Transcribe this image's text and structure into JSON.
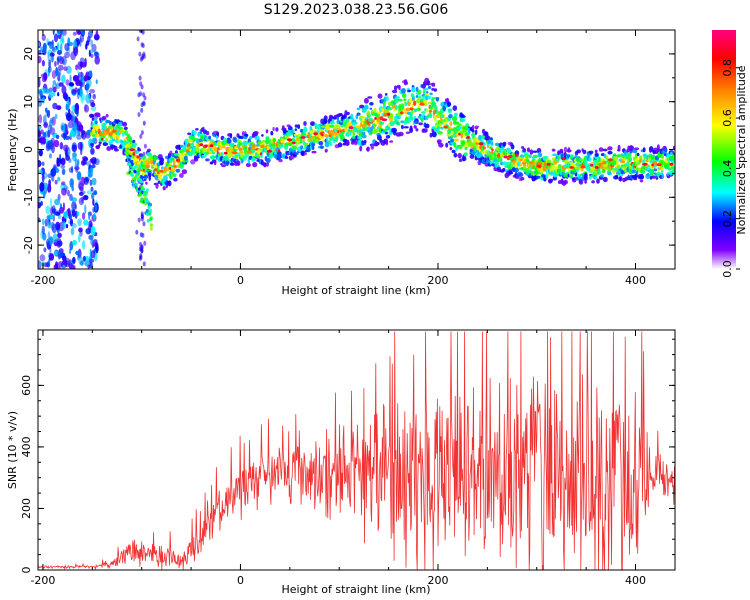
{
  "title": "S129.2023.038.23.56.G06",
  "chart_data": [
    {
      "type": "heatmap",
      "xlabel": "Height of straight line (km)",
      "ylabel": "Frequency (Hz)",
      "xlim": [
        -205,
        440
      ],
      "ylim": [
        -25,
        25
      ],
      "xticks": [
        -200,
        0,
        200,
        400
      ],
      "yticks": [
        -20,
        -10,
        0,
        10,
        20
      ],
      "colorbar": {
        "label": "Normalized spectral amplitude",
        "range": [
          0.0,
          0.95
        ],
        "ticks": [
          0.0,
          0.2,
          0.4,
          0.6,
          0.8
        ],
        "colors": [
          "#ffffff",
          "#8000ff",
          "#0000ff",
          "#00ffff",
          "#00ff00",
          "#ffff00",
          "#ff8000",
          "#ff0000",
          "#ff0080"
        ]
      },
      "ridge": {
        "x": [
          -150,
          -135,
          -120,
          -110,
          -100,
          -90,
          -80,
          -70,
          -60,
          -50,
          -40,
          -20,
          0,
          20,
          40,
          60,
          80,
          100,
          120,
          140,
          160,
          180,
          190,
          200,
          210,
          230,
          250,
          270,
          300,
          330,
          360,
          390,
          420,
          440
        ],
        "y": [
          4,
          3.5,
          3,
          0,
          -4,
          -3,
          -5,
          -4,
          -2,
          1,
          1,
          0,
          0,
          0,
          1,
          2,
          3,
          4,
          5,
          6,
          8,
          9.5,
          9,
          7,
          5,
          2,
          0,
          -2,
          -3.5,
          -3.5,
          -3.5,
          -3,
          -3,
          -3
        ]
      },
      "spur": {
        "x": [
          -115,
          -108,
          -100,
          -95,
          -90
        ],
        "y": [
          -2,
          -6,
          -9,
          -11,
          -14
        ]
      }
    },
    {
      "type": "line",
      "xlabel": "Height of straight line (km)",
      "ylabel": "SNR (10 * v/v)",
      "xlim": [
        -205,
        440
      ],
      "ylim": [
        0,
        780
      ],
      "xticks": [
        -200,
        0,
        200,
        400
      ],
      "yticks": [
        0,
        200,
        400,
        600
      ],
      "color": "#f03232",
      "envelope": {
        "x": [
          -205,
          -150,
          -130,
          -110,
          -80,
          -60,
          -40,
          -20,
          0,
          20,
          40,
          70,
          100,
          130,
          160,
          200,
          250,
          300,
          350,
          400,
          420,
          440
        ],
        "mean": [
          10,
          10,
          18,
          60,
          50,
          30,
          110,
          200,
          260,
          300,
          320,
          330,
          320,
          330,
          330,
          310,
          300,
          300,
          300,
          300,
          300,
          290
        ],
        "spread": [
          5,
          5,
          15,
          40,
          50,
          30,
          60,
          80,
          90,
          90,
          90,
          110,
          160,
          230,
          280,
          330,
          360,
          370,
          360,
          330,
          90,
          70
        ]
      }
    }
  ]
}
